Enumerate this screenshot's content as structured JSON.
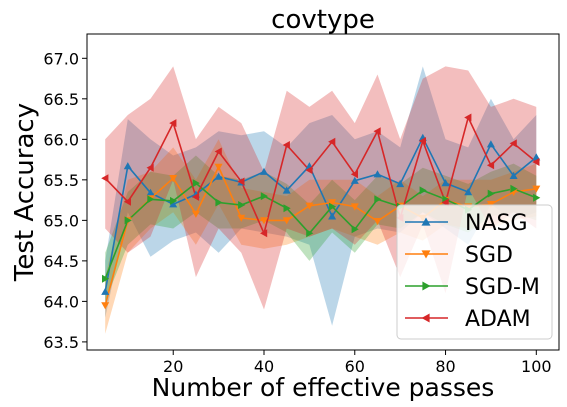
{
  "chart_data": {
    "type": "line",
    "title": "covtype",
    "xlabel": "Number of effective passes",
    "ylabel": "Test Accuracy",
    "xlim": [
      1,
      105
    ],
    "ylim": [
      63.4,
      67.3
    ],
    "xticks": [
      20,
      40,
      60,
      80,
      100
    ],
    "yticks": [
      63.5,
      64.0,
      64.5,
      65.0,
      65.5,
      66.0,
      66.5,
      67.0
    ],
    "ytick_labels": [
      "63.5",
      "64.0",
      "64.5",
      "65.0",
      "65.5",
      "66.0",
      "66.5",
      "67.0"
    ],
    "grid": false,
    "legend_position": "lower-right",
    "x": [
      5,
      10,
      15,
      20,
      25,
      30,
      35,
      40,
      45,
      50,
      55,
      60,
      65,
      70,
      75,
      80,
      85,
      90,
      95,
      100
    ],
    "series": [
      {
        "name": "NASG",
        "color": "#1f77b4",
        "marker": "triangle-up",
        "values": [
          64.12,
          65.67,
          65.34,
          65.2,
          65.32,
          65.54,
          65.47,
          65.6,
          65.37,
          65.67,
          65.05,
          65.49,
          65.57,
          65.45,
          66.02,
          65.46,
          65.35,
          65.94,
          65.55,
          65.78
        ],
        "upper": [
          64.5,
          66.25,
          66.0,
          65.8,
          65.9,
          66.1,
          66.05,
          66.1,
          65.9,
          66.2,
          66.3,
          66.0,
          66.1,
          65.9,
          66.9,
          66.0,
          65.9,
          66.5,
          66.0,
          66.3
        ],
        "lower": [
          63.8,
          65.1,
          64.55,
          64.75,
          64.85,
          64.6,
          64.9,
          64.85,
          64.8,
          64.7,
          63.7,
          64.8,
          64.9,
          64.85,
          65.1,
          64.9,
          64.7,
          65.2,
          65.0,
          65.1
        ]
      },
      {
        "name": "SGD",
        "color": "#ff7f0e",
        "marker": "triangle-down",
        "values": [
          63.95,
          65.0,
          65.27,
          65.52,
          65.08,
          65.66,
          65.03,
          65.0,
          65.0,
          65.18,
          65.22,
          65.17,
          64.99,
          65.18,
          65.03,
          65.25,
          65.17,
          65.2,
          65.35,
          65.39
        ],
        "upper": [
          64.3,
          65.5,
          65.6,
          65.9,
          65.5,
          66.0,
          65.4,
          65.35,
          65.3,
          65.5,
          65.5,
          65.5,
          65.3,
          65.5,
          65.3,
          65.5,
          65.5,
          65.5,
          65.6,
          65.7
        ],
        "lower": [
          63.6,
          64.6,
          64.9,
          65.1,
          64.7,
          65.2,
          64.7,
          64.65,
          64.7,
          64.8,
          64.9,
          64.8,
          64.7,
          64.85,
          64.75,
          64.95,
          64.9,
          64.9,
          65.0,
          65.05
        ]
      },
      {
        "name": "SGD-M",
        "color": "#2ca02c",
        "marker": "triangle-right",
        "values": [
          64.28,
          65.0,
          65.26,
          65.24,
          65.46,
          65.22,
          65.19,
          65.3,
          65.15,
          64.84,
          65.17,
          64.89,
          65.26,
          65.17,
          65.37,
          65.26,
          65.13,
          65.33,
          65.39,
          65.28
        ],
        "upper": [
          64.6,
          65.35,
          65.6,
          65.55,
          65.8,
          65.55,
          65.5,
          65.6,
          65.45,
          65.2,
          65.5,
          65.25,
          65.55,
          65.45,
          65.65,
          65.55,
          65.45,
          65.6,
          65.7,
          65.55
        ],
        "lower": [
          64.0,
          64.7,
          64.95,
          64.9,
          65.1,
          64.9,
          64.9,
          65.0,
          64.85,
          64.5,
          64.85,
          64.6,
          64.95,
          64.9,
          65.1,
          64.95,
          64.85,
          65.05,
          65.1,
          65.0
        ]
      },
      {
        "name": "ADAM",
        "color": "#d62728",
        "marker": "triangle-left",
        "values": [
          65.52,
          65.23,
          65.65,
          66.2,
          65.29,
          65.85,
          65.48,
          64.84,
          65.93,
          65.62,
          65.97,
          65.57,
          66.1,
          65.03,
          65.98,
          65.22,
          66.27,
          65.68,
          65.95,
          65.72
        ],
        "upper": [
          66.0,
          66.3,
          66.5,
          66.9,
          66.0,
          66.4,
          66.2,
          65.6,
          66.6,
          66.4,
          66.6,
          66.2,
          66.8,
          66.0,
          66.75,
          66.9,
          66.85,
          66.4,
          66.5,
          66.4
        ],
        "lower": [
          64.9,
          64.6,
          64.8,
          65.5,
          64.3,
          64.9,
          64.6,
          63.9,
          64.9,
          64.8,
          64.9,
          64.7,
          65.0,
          64.3,
          64.95,
          64.1,
          65.4,
          64.9,
          65.1,
          64.9
        ]
      }
    ]
  }
}
